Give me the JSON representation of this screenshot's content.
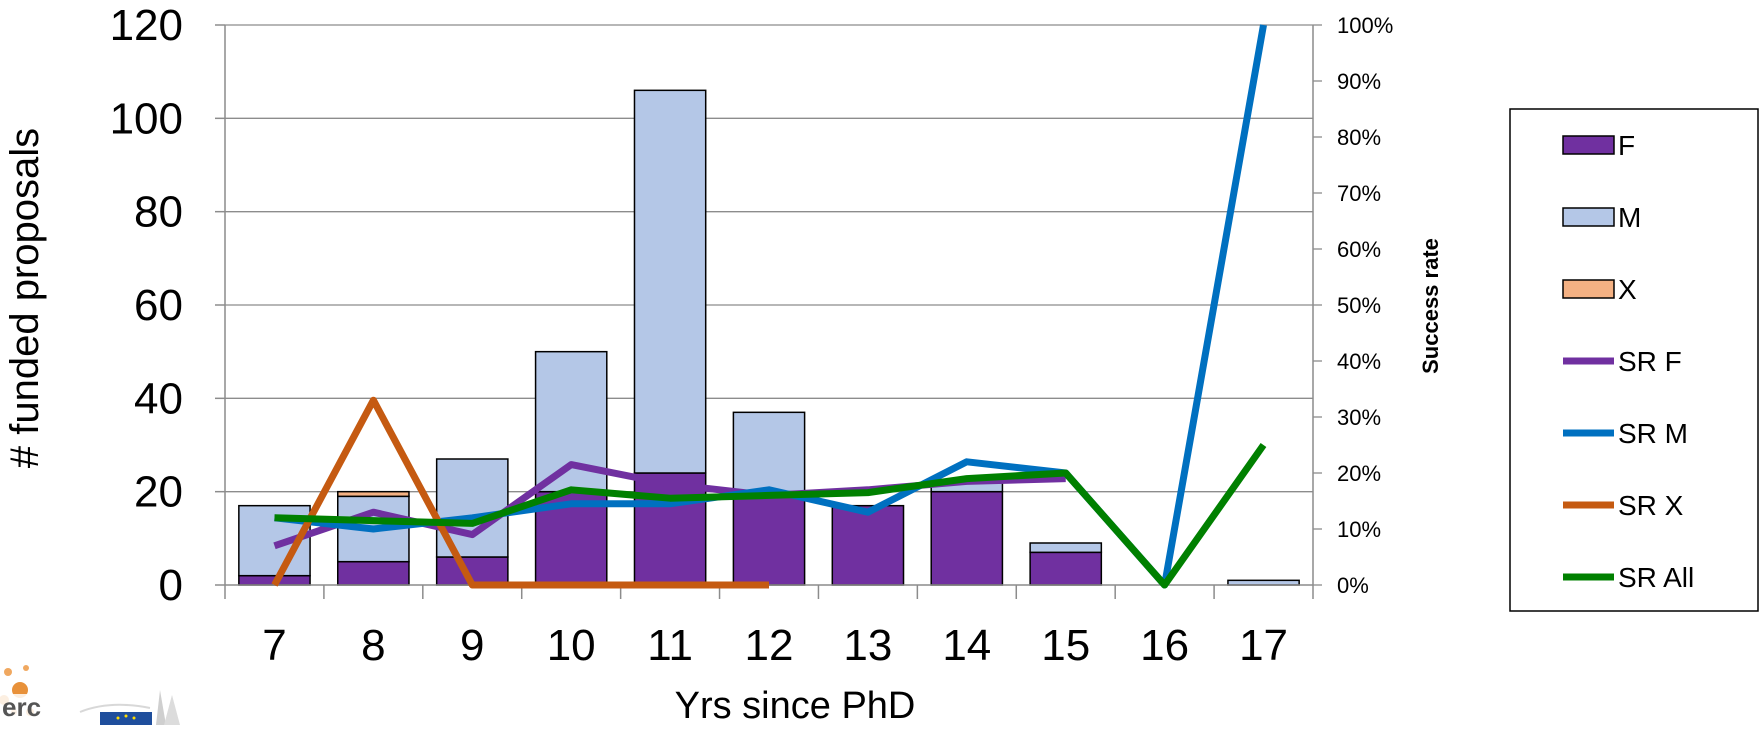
{
  "chart_data": {
    "type": "bar",
    "stacked": true,
    "categories": [
      "7",
      "8",
      "9",
      "10",
      "11",
      "12",
      "13",
      "14",
      "15",
      "16",
      "17"
    ],
    "xlabel": "Yrs since PhD",
    "ylabel": "# funded proposals",
    "y2label": "Success rate",
    "ylim": [
      0,
      120
    ],
    "y2lim": [
      0,
      1
    ],
    "yticks": [
      "0",
      "20",
      "40",
      "60",
      "80",
      "100",
      "120"
    ],
    "y2ticks": [
      "0%",
      "10%",
      "20%",
      "30%",
      "40%",
      "50%",
      "60%",
      "70%",
      "80%",
      "90%",
      "100%"
    ],
    "grid": true,
    "legend_position": "right",
    "bar_series": [
      {
        "name": "F",
        "color": "#7030a0",
        "values": [
          2,
          5,
          6,
          20,
          24,
          20,
          17,
          20,
          7,
          0,
          0
        ]
      },
      {
        "name": "M",
        "color": "#b4c7e7",
        "values": [
          15,
          14,
          21,
          30,
          82,
          17,
          0,
          2,
          2,
          0,
          1
        ]
      },
      {
        "name": "X",
        "color": "#f4b183",
        "values": [
          0,
          1,
          0,
          0,
          0,
          0,
          0,
          0,
          0,
          0,
          0
        ]
      }
    ],
    "line_series": [
      {
        "name": "SR F",
        "color": "#7030a0",
        "values": [
          0.07,
          0.13,
          0.09,
          0.215,
          0.18,
          0.16,
          0.17,
          0.185,
          0.19,
          null,
          null
        ]
      },
      {
        "name": "SR M",
        "color": "#0070c0",
        "values": [
          0.12,
          0.1,
          0.12,
          0.145,
          0.145,
          0.17,
          0.13,
          0.22,
          0.2,
          0,
          1.0
        ]
      },
      {
        "name": "SR X",
        "color": "#c55a11",
        "values": [
          0,
          0.33,
          0,
          0,
          0,
          0,
          null,
          null,
          null,
          null,
          null
        ]
      },
      {
        "name": "SR All",
        "color": "#008000",
        "values": [
          0.12,
          0.115,
          0.11,
          0.17,
          0.155,
          0.16,
          0.165,
          0.19,
          0.2,
          0,
          0.25
        ]
      }
    ]
  }
}
